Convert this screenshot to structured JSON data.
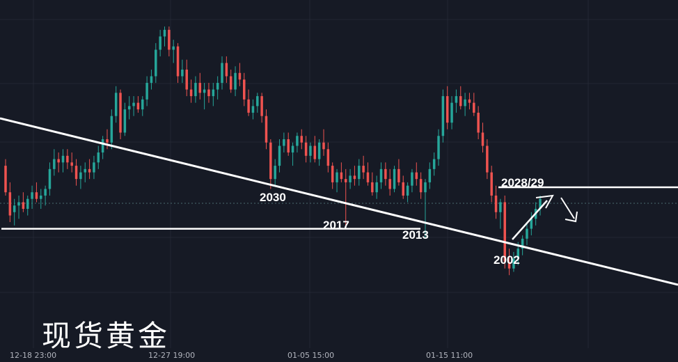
{
  "chart_data": {
    "type": "candlestick",
    "watermark": "现货黄金",
    "x_tick_labels": [
      "12-18 23:00",
      "12-27 19:00",
      "01-05 15:00",
      "01-15 11:00"
    ],
    "y_range": [
      1980,
      2085
    ],
    "annotations": [
      {
        "text": "2030",
        "value": 2030
      },
      {
        "text": "2017",
        "value": 2017
      },
      {
        "text": "2013",
        "value": 2013
      },
      {
        "text": "2002",
        "value": 2002
      },
      {
        "text": "2028/29",
        "value": 2028.5
      }
    ],
    "levels": [
      {
        "name": "support",
        "value": 2016
      },
      {
        "name": "resistance",
        "value": 2028.5
      }
    ],
    "colors": {
      "up": "#26a69a",
      "down": "#ef5350",
      "lines": "#ffffff",
      "background": "#161a25",
      "text": "#b2b5be"
    },
    "candles": [
      [
        2035,
        2037,
        2026,
        2027
      ],
      [
        2027,
        2030,
        2018,
        2020
      ],
      [
        2021,
        2025,
        2017,
        2023
      ],
      [
        2023,
        2026,
        2019,
        2024
      ],
      [
        2024,
        2027,
        2021,
        2022
      ],
      [
        2022,
        2026,
        2020,
        2025
      ],
      [
        2025,
        2029,
        2022,
        2027
      ],
      [
        2027,
        2030,
        2024,
        2025
      ],
      [
        2025,
        2028,
        2022,
        2026
      ],
      [
        2026,
        2029,
        2023,
        2028
      ],
      [
        2028,
        2036,
        2026,
        2034
      ],
      [
        2034,
        2040,
        2032,
        2037
      ],
      [
        2037,
        2039,
        2033,
        2036
      ],
      [
        2036,
        2040,
        2033,
        2038
      ],
      [
        2038,
        2040,
        2034,
        2036
      ],
      [
        2036,
        2039,
        2033,
        2035
      ],
      [
        2035,
        2037,
        2029,
        2031
      ],
      [
        2031,
        2035,
        2028,
        2033
      ],
      [
        2033,
        2036,
        2030,
        2034
      ],
      [
        2034,
        2037,
        2031,
        2033
      ],
      [
        2033,
        2038,
        2031,
        2036
      ],
      [
        2036,
        2041,
        2034,
        2039
      ],
      [
        2039,
        2044,
        2037,
        2043
      ],
      [
        2043,
        2046,
        2040,
        2042
      ],
      [
        2042,
        2052,
        2040,
        2050
      ],
      [
        2050,
        2059,
        2048,
        2057
      ],
      [
        2057,
        2058,
        2043,
        2045
      ],
      [
        2045,
        2054,
        2044,
        2052
      ],
      [
        2052,
        2056,
        2049,
        2053
      ],
      [
        2053,
        2056,
        2050,
        2054
      ],
      [
        2054,
        2056,
        2051,
        2052
      ],
      [
        2052,
        2056,
        2050,
        2055
      ],
      [
        2055,
        2062,
        2053,
        2060
      ],
      [
        2060,
        2064,
        2058,
        2062
      ],
      [
        2062,
        2072,
        2060,
        2070
      ],
      [
        2070,
        2076,
        2068,
        2074
      ],
      [
        2074,
        2077,
        2071,
        2076
      ],
      [
        2076,
        2077,
        2068,
        2070
      ],
      [
        2070,
        2073,
        2066,
        2071
      ],
      [
        2071,
        2072,
        2060,
        2062
      ],
      [
        2062,
        2067,
        2060,
        2064
      ],
      [
        2064,
        2067,
        2056,
        2058
      ],
      [
        2058,
        2061,
        2054,
        2056
      ],
      [
        2056,
        2062,
        2054,
        2060
      ],
      [
        2060,
        2063,
        2055,
        2057
      ],
      [
        2057,
        2060,
        2052,
        2058
      ],
      [
        2058,
        2060,
        2054,
        2056
      ],
      [
        2056,
        2060,
        2053,
        2058
      ],
      [
        2058,
        2062,
        2055,
        2060
      ],
      [
        2060,
        2068,
        2058,
        2066
      ],
      [
        2066,
        2068,
        2060,
        2062
      ],
      [
        2062,
        2064,
        2057,
        2058
      ],
      [
        2058,
        2065,
        2056,
        2063
      ],
      [
        2063,
        2066,
        2059,
        2061
      ],
      [
        2061,
        2063,
        2053,
        2055
      ],
      [
        2055,
        2058,
        2050,
        2051
      ],
      [
        2051,
        2055,
        2049,
        2053
      ],
      [
        2053,
        2057,
        2051,
        2056
      ],
      [
        2056,
        2057,
        2048,
        2050
      ],
      [
        2050,
        2052,
        2040,
        2042
      ],
      [
        2042,
        2043,
        2028,
        2031
      ],
      [
        2031,
        2037,
        2029,
        2035
      ],
      [
        2035,
        2043,
        2033,
        2041
      ],
      [
        2041,
        2045,
        2039,
        2043
      ],
      [
        2043,
        2045,
        2038,
        2039
      ],
      [
        2039,
        2042,
        2035,
        2041
      ],
      [
        2041,
        2045,
        2039,
        2044
      ],
      [
        2044,
        2046,
        2040,
        2042
      ],
      [
        2042,
        2044,
        2036,
        2038
      ],
      [
        2038,
        2042,
        2036,
        2041
      ],
      [
        2041,
        2044,
        2036,
        2037
      ],
      [
        2037,
        2043,
        2035,
        2042
      ],
      [
        2042,
        2046,
        2038,
        2040
      ],
      [
        2040,
        2042,
        2033,
        2035
      ],
      [
        2035,
        2036,
        2028,
        2030
      ],
      [
        2030,
        2034,
        2027,
        2033
      ],
      [
        2033,
        2036,
        2030,
        2031
      ],
      [
        2031,
        2034,
        2017,
        2030
      ],
      [
        2030,
        2034,
        2028,
        2032
      ],
      [
        2032,
        2035,
        2029,
        2031
      ],
      [
        2031,
        2037,
        2029,
        2035
      ],
      [
        2035,
        2038,
        2031,
        2033
      ],
      [
        2033,
        2036,
        2029,
        2030
      ],
      [
        2030,
        2033,
        2026,
        2027
      ],
      [
        2027,
        2032,
        2025,
        2030
      ],
      [
        2030,
        2036,
        2028,
        2034
      ],
      [
        2034,
        2036,
        2029,
        2031
      ],
      [
        2031,
        2034,
        2026,
        2028
      ],
      [
        2028,
        2035,
        2027,
        2034
      ],
      [
        2034,
        2037,
        2029,
        2030
      ],
      [
        2030,
        2032,
        2025,
        2026
      ],
      [
        2026,
        2030,
        2024,
        2029
      ],
      [
        2029,
        2034,
        2027,
        2033
      ],
      [
        2033,
        2036,
        2029,
        2031
      ],
      [
        2031,
        2033,
        2025,
        2027
      ],
      [
        2027,
        2031,
        2013,
        2030
      ],
      [
        2030,
        2036,
        2028,
        2034
      ],
      [
        2034,
        2039,
        2032,
        2037
      ],
      [
        2037,
        2046,
        2035,
        2044
      ],
      [
        2044,
        2058,
        2042,
        2056
      ],
      [
        2056,
        2059,
        2046,
        2048
      ],
      [
        2048,
        2056,
        2046,
        2054
      ],
      [
        2054,
        2058,
        2051,
        2056
      ],
      [
        2056,
        2059,
        2052,
        2053
      ],
      [
        2053,
        2057,
        2050,
        2055
      ],
      [
        2055,
        2057,
        2052,
        2054
      ],
      [
        2054,
        2057,
        2050,
        2051
      ],
      [
        2051,
        2053,
        2043,
        2045
      ],
      [
        2045,
        2048,
        2039,
        2041
      ],
      [
        2041,
        2043,
        2031,
        2033
      ],
      [
        2033,
        2035,
        2024,
        2026
      ],
      [
        2026,
        2029,
        2019,
        2021
      ],
      [
        2021,
        2025,
        2016,
        2024
      ],
      [
        2024,
        2026,
        2004,
        2006
      ],
      [
        2006,
        2010,
        2002,
        2004
      ],
      [
        2004,
        2009,
        2003,
        2007
      ],
      [
        2007,
        2012,
        2005,
        2010
      ],
      [
        2010,
        2014,
        2008,
        2013
      ],
      [
        2013,
        2018,
        2011,
        2016
      ],
      [
        2016,
        2021,
        2014,
        2019
      ],
      [
        2019,
        2024,
        2017,
        2022
      ],
      [
        2022,
        2026,
        2020,
        2025
      ]
    ]
  }
}
